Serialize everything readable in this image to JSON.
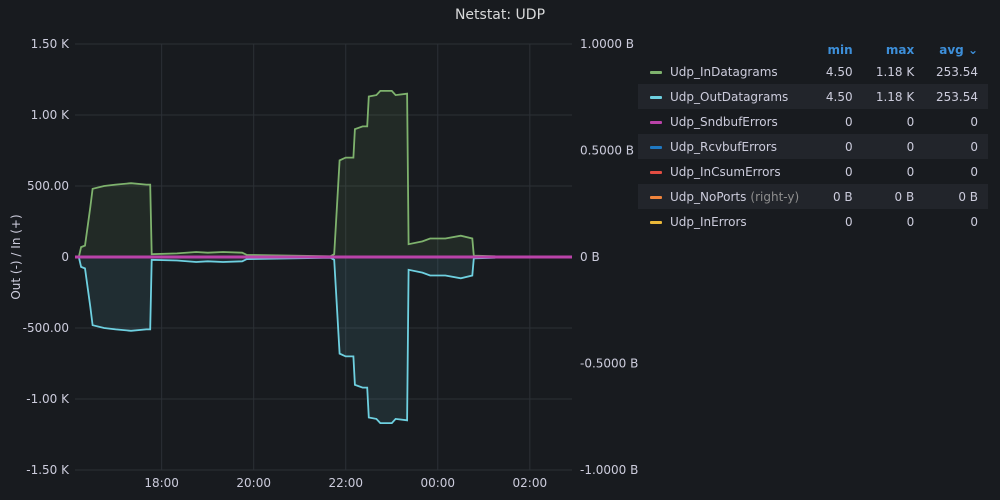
{
  "panel": {
    "title": "Netstat: UDP"
  },
  "legend": {
    "headers": {
      "min": "min",
      "max": "max",
      "avg": "avg ⌄"
    },
    "items": [
      {
        "name": "Udp_InDatagrams",
        "suffix": "",
        "color": "#7eb26d",
        "min": "4.50",
        "max": "1.18 K",
        "avg": "253.54"
      },
      {
        "name": "Udp_OutDatagrams",
        "suffix": "",
        "color": "#6ed0e0",
        "min": "4.50",
        "max": "1.18 K",
        "avg": "253.54"
      },
      {
        "name": "Udp_SndbufErrors",
        "suffix": "",
        "color": "#ba43a9",
        "min": "0",
        "max": "0",
        "avg": "0"
      },
      {
        "name": "Udp_RcvbufErrors",
        "suffix": "",
        "color": "#1f78c1",
        "min": "0",
        "max": "0",
        "avg": "0"
      },
      {
        "name": "Udp_InCsumErrors",
        "suffix": "",
        "color": "#e24d42",
        "min": "0",
        "max": "0",
        "avg": "0"
      },
      {
        "name": "Udp_NoPorts",
        "suffix": "(right-y)",
        "color": "#ef843c",
        "min": "0 B",
        "max": "0 B",
        "avg": "0 B"
      },
      {
        "name": "Udp_InErrors",
        "suffix": "",
        "color": "#eab839",
        "min": "0",
        "max": "0",
        "avg": "0"
      }
    ]
  },
  "chart_data": {
    "type": "line",
    "ylabel": "Out (-) / In (+)",
    "y_left_ticks": [
      {
        "value": 1500,
        "label": "1.50 K"
      },
      {
        "value": 1000,
        "label": "1.00 K"
      },
      {
        "value": 500,
        "label": "500.00"
      },
      {
        "value": 0,
        "label": "0"
      },
      {
        "value": -500,
        "label": "-500.00"
      },
      {
        "value": -1000,
        "label": "-1.00 K"
      },
      {
        "value": -1500,
        "label": "-1.50 K"
      }
    ],
    "y_right_ticks": [
      {
        "value": 1.0,
        "label": "1.0000 B"
      },
      {
        "value": 0.5,
        "label": "0.5000 B"
      },
      {
        "value": 0,
        "label": "0 B"
      },
      {
        "value": -0.5,
        "label": "-0.5000 B"
      },
      {
        "value": -1.0,
        "label": "-1.0000 B"
      }
    ],
    "ylim_left": [
      -1500,
      1500
    ],
    "ylim_right": [
      -1,
      1
    ],
    "x_ticks": [
      "18:00",
      "20:00",
      "22:00",
      "00:00",
      "02:00"
    ],
    "x_tick_times": [
      "2000-01-01T18:00",
      "2000-01-01T20:00",
      "2000-01-01T22:00",
      "2000-01-02T00:00",
      "2000-01-02T02:00"
    ],
    "xlim": [
      "2000-01-01T16:07",
      "2000-01-02T02:55"
    ],
    "grid": true,
    "series": [
      {
        "name": "Udp_InDatagrams",
        "color": "#7eb26d",
        "fill": true,
        "points": [
          [
            "2000-01-01T16:12",
            0
          ],
          [
            "2000-01-01T16:15",
            70
          ],
          [
            "2000-01-01T16:20",
            80
          ],
          [
            "2000-01-01T16:27",
            350
          ],
          [
            "2000-01-01T16:30",
            480
          ],
          [
            "2000-01-01T16:45",
            500
          ],
          [
            "2000-01-01T17:00",
            510
          ],
          [
            "2000-01-01T17:20",
            520
          ],
          [
            "2000-01-01T17:40",
            510
          ],
          [
            "2000-01-01T17:45",
            510
          ],
          [
            "2000-01-01T17:47",
            20
          ],
          [
            "2000-01-01T18:20",
            25
          ],
          [
            "2000-01-01T18:45",
            35
          ],
          [
            "2000-01-01T19:00",
            30
          ],
          [
            "2000-01-01T19:20",
            35
          ],
          [
            "2000-01-01T19:45",
            30
          ],
          [
            "2000-01-01T19:51",
            15
          ],
          [
            "2000-01-01T21:40",
            5
          ],
          [
            "2000-01-01T21:45",
            20
          ],
          [
            "2000-01-01T21:52",
            680
          ],
          [
            "2000-01-01T22:00",
            700
          ],
          [
            "2000-01-01T22:10",
            700
          ],
          [
            "2000-01-01T22:12",
            900
          ],
          [
            "2000-01-01T22:22",
            920
          ],
          [
            "2000-01-01T22:28",
            920
          ],
          [
            "2000-01-01T22:30",
            1130
          ],
          [
            "2000-01-01T22:40",
            1140
          ],
          [
            "2000-01-01T22:45",
            1170
          ],
          [
            "2000-01-01T23:00",
            1170
          ],
          [
            "2000-01-01T23:05",
            1140
          ],
          [
            "2000-01-01T23:20",
            1150
          ],
          [
            "2000-01-01T23:22",
            90
          ],
          [
            "2000-01-01T23:40",
            110
          ],
          [
            "2000-01-01T23:50",
            130
          ],
          [
            "2000-01-02T00:10",
            130
          ],
          [
            "2000-01-02T00:30",
            150
          ],
          [
            "2000-01-02T00:45",
            130
          ],
          [
            "2000-01-02T00:47",
            10
          ],
          [
            "2000-01-02T01:15",
            5
          ]
        ]
      },
      {
        "name": "Udp_OutDatagrams",
        "color": "#6ed0e0",
        "fill": true,
        "points": [
          [
            "2000-01-01T16:12",
            0
          ],
          [
            "2000-01-01T16:15",
            -70
          ],
          [
            "2000-01-01T16:20",
            -80
          ],
          [
            "2000-01-01T16:27",
            -350
          ],
          [
            "2000-01-01T16:30",
            -480
          ],
          [
            "2000-01-01T16:45",
            -500
          ],
          [
            "2000-01-01T17:00",
            -510
          ],
          [
            "2000-01-01T17:20",
            -520
          ],
          [
            "2000-01-01T17:40",
            -510
          ],
          [
            "2000-01-01T17:45",
            -510
          ],
          [
            "2000-01-01T17:47",
            -20
          ],
          [
            "2000-01-01T18:20",
            -25
          ],
          [
            "2000-01-01T18:45",
            -35
          ],
          [
            "2000-01-01T19:00",
            -30
          ],
          [
            "2000-01-01T19:20",
            -35
          ],
          [
            "2000-01-01T19:45",
            -30
          ],
          [
            "2000-01-01T19:51",
            -15
          ],
          [
            "2000-01-01T21:40",
            -5
          ],
          [
            "2000-01-01T21:45",
            -20
          ],
          [
            "2000-01-01T21:52",
            -680
          ],
          [
            "2000-01-01T22:00",
            -700
          ],
          [
            "2000-01-01T22:10",
            -700
          ],
          [
            "2000-01-01T22:12",
            -900
          ],
          [
            "2000-01-01T22:22",
            -920
          ],
          [
            "2000-01-01T22:28",
            -920
          ],
          [
            "2000-01-01T22:30",
            -1130
          ],
          [
            "2000-01-01T22:40",
            -1140
          ],
          [
            "2000-01-01T22:45",
            -1170
          ],
          [
            "2000-01-01T23:00",
            -1170
          ],
          [
            "2000-01-01T23:05",
            -1140
          ],
          [
            "2000-01-01T23:20",
            -1150
          ],
          [
            "2000-01-01T23:22",
            -90
          ],
          [
            "2000-01-01T23:40",
            -110
          ],
          [
            "2000-01-01T23:50",
            -130
          ],
          [
            "2000-01-02T00:10",
            -130
          ],
          [
            "2000-01-02T00:30",
            -150
          ],
          [
            "2000-01-02T00:45",
            -130
          ],
          [
            "2000-01-02T00:47",
            -10
          ],
          [
            "2000-01-02T01:15",
            -5
          ]
        ]
      },
      {
        "name": "Udp_SndbufErrors",
        "color": "#ba43a9",
        "fill": false,
        "points": [
          [
            "2000-01-01T16:07",
            0
          ],
          [
            "2000-01-02T02:55",
            0
          ]
        ]
      },
      {
        "name": "Udp_RcvbufErrors",
        "color": "#1f78c1",
        "fill": false,
        "points": [
          [
            "2000-01-01T16:07",
            0
          ],
          [
            "2000-01-02T02:55",
            0
          ]
        ]
      },
      {
        "name": "Udp_InCsumErrors",
        "color": "#e24d42",
        "fill": false,
        "points": [
          [
            "2000-01-01T16:07",
            0
          ],
          [
            "2000-01-02T02:55",
            0
          ]
        ]
      },
      {
        "name": "Udp_NoPorts",
        "color": "#ef843c",
        "fill": false,
        "axis": "right",
        "points": [
          [
            "2000-01-01T16:07",
            0
          ],
          [
            "2000-01-02T02:55",
            0
          ]
        ]
      },
      {
        "name": "Udp_InErrors",
        "color": "#eab839",
        "fill": false,
        "points": [
          [
            "2000-01-01T16:07",
            0
          ],
          [
            "2000-01-02T02:55",
            0
          ]
        ]
      }
    ]
  }
}
